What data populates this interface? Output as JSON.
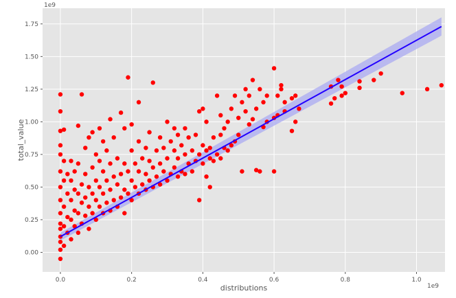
{
  "chart_data": {
    "type": "scatter",
    "title": "",
    "xlabel": "distributions",
    "ylabel": "total_value",
    "x_multiplier": "1e9",
    "y_multiplier": "1e9",
    "xlim": [
      -0.05,
      1.08
    ],
    "ylim": [
      -0.15,
      1.87
    ],
    "x_ticks": [
      0.0,
      0.2,
      0.4,
      0.6,
      0.8,
      1.0
    ],
    "x_tick_labels": [
      "0.0",
      "0.2",
      "0.4",
      "0.6",
      "0.8",
      "1.0"
    ],
    "y_ticks": [
      0.0,
      0.25,
      0.5,
      0.75,
      1.0,
      1.25,
      1.5,
      1.75
    ],
    "y_tick_labels": [
      "0.00",
      "0.25",
      "0.50",
      "0.75",
      "1.00",
      "1.25",
      "1.50",
      "1.75"
    ],
    "grid": true,
    "colors": {
      "background": "#e5e5e5",
      "grid": "#ffffff",
      "points": "#ff0000",
      "regression_line": "#2200ff",
      "confidence_band": "#a9a9f2"
    },
    "points": [
      [
        0.0,
        0.08
      ],
      [
        0.0,
        0.12
      ],
      [
        0.0,
        0.18
      ],
      [
        0.0,
        0.22
      ],
      [
        0.0,
        0.3
      ],
      [
        0.0,
        0.4
      ],
      [
        0.0,
        0.5
      ],
      [
        0.0,
        0.62
      ],
      [
        0.0,
        0.75
      ],
      [
        0.0,
        0.93
      ],
      [
        0.0,
        1.08
      ],
      [
        0.0,
        1.21
      ],
      [
        0.0,
        -0.05
      ],
      [
        0.0,
        0.02
      ],
      [
        0.0,
        0.82
      ],
      [
        0.01,
        0.05
      ],
      [
        0.01,
        0.2
      ],
      [
        0.01,
        0.35
      ],
      [
        0.01,
        0.55
      ],
      [
        0.01,
        0.7
      ],
      [
        0.01,
        0.94
      ],
      [
        0.02,
        0.15
      ],
      [
        0.02,
        0.27
      ],
      [
        0.02,
        0.45
      ],
      [
        0.02,
        0.6
      ],
      [
        0.03,
        0.1
      ],
      [
        0.03,
        0.25
      ],
      [
        0.03,
        0.4
      ],
      [
        0.03,
        0.55
      ],
      [
        0.03,
        0.7
      ],
      [
        0.04,
        0.2
      ],
      [
        0.04,
        0.32
      ],
      [
        0.04,
        0.48
      ],
      [
        0.04,
        0.62
      ],
      [
        0.05,
        0.15
      ],
      [
        0.05,
        0.3
      ],
      [
        0.05,
        0.45
      ],
      [
        0.05,
        0.68
      ],
      [
        0.05,
        0.97
      ],
      [
        0.06,
        0.22
      ],
      [
        0.06,
        0.38
      ],
      [
        0.06,
        0.52
      ],
      [
        0.06,
        1.21
      ],
      [
        0.07,
        0.28
      ],
      [
        0.07,
        0.42
      ],
      [
        0.07,
        0.6
      ],
      [
        0.07,
        0.8
      ],
      [
        0.08,
        0.18
      ],
      [
        0.08,
        0.35
      ],
      [
        0.08,
        0.5
      ],
      [
        0.08,
        0.88
      ],
      [
        0.09,
        0.3
      ],
      [
        0.09,
        0.45
      ],
      [
        0.09,
        0.65
      ],
      [
        0.09,
        0.92
      ],
      [
        0.1,
        0.25
      ],
      [
        0.1,
        0.4
      ],
      [
        0.1,
        0.55
      ],
      [
        0.1,
        0.75
      ],
      [
        0.11,
        0.35
      ],
      [
        0.11,
        0.5
      ],
      [
        0.11,
        0.7
      ],
      [
        0.11,
        0.95
      ],
      [
        0.12,
        0.3
      ],
      [
        0.12,
        0.45
      ],
      [
        0.12,
        0.62
      ],
      [
        0.12,
        0.85
      ],
      [
        0.13,
        0.38
      ],
      [
        0.13,
        0.55
      ],
      [
        0.13,
        0.78
      ],
      [
        0.14,
        0.32
      ],
      [
        0.14,
        0.48
      ],
      [
        0.14,
        0.68
      ],
      [
        0.14,
        1.02
      ],
      [
        0.15,
        0.4
      ],
      [
        0.15,
        0.58
      ],
      [
        0.15,
        0.88
      ],
      [
        0.16,
        0.35
      ],
      [
        0.16,
        0.52
      ],
      [
        0.16,
        0.72
      ],
      [
        0.17,
        0.42
      ],
      [
        0.17,
        0.6
      ],
      [
        0.17,
        1.07
      ],
      [
        0.18,
        0.3
      ],
      [
        0.18,
        0.48
      ],
      [
        0.18,
        0.68
      ],
      [
        0.18,
        0.95
      ],
      [
        0.19,
        0.45
      ],
      [
        0.19,
        0.62
      ],
      [
        0.19,
        1.34
      ],
      [
        0.2,
        0.4
      ],
      [
        0.2,
        0.55
      ],
      [
        0.2,
        0.78
      ],
      [
        0.2,
        0.98
      ],
      [
        0.21,
        0.5
      ],
      [
        0.21,
        0.68
      ],
      [
        0.22,
        0.45
      ],
      [
        0.22,
        0.62
      ],
      [
        0.22,
        0.85
      ],
      [
        0.22,
        1.15
      ],
      [
        0.23,
        0.52
      ],
      [
        0.23,
        0.72
      ],
      [
        0.24,
        0.48
      ],
      [
        0.24,
        0.6
      ],
      [
        0.24,
        0.8
      ],
      [
        0.25,
        0.55
      ],
      [
        0.25,
        0.7
      ],
      [
        0.25,
        0.92
      ],
      [
        0.26,
        0.5
      ],
      [
        0.26,
        0.65
      ],
      [
        0.26,
        1.3
      ],
      [
        0.27,
        0.58
      ],
      [
        0.27,
        0.78
      ],
      [
        0.28,
        0.52
      ],
      [
        0.28,
        0.68
      ],
      [
        0.28,
        0.88
      ],
      [
        0.29,
        0.62
      ],
      [
        0.29,
        0.8
      ],
      [
        0.3,
        0.55
      ],
      [
        0.3,
        0.72
      ],
      [
        0.3,
        1.0
      ],
      [
        0.31,
        0.6
      ],
      [
        0.31,
        0.85
      ],
      [
        0.32,
        0.65
      ],
      [
        0.32,
        0.78
      ],
      [
        0.32,
        0.95
      ],
      [
        0.33,
        0.58
      ],
      [
        0.33,
        0.72
      ],
      [
        0.33,
        0.9
      ],
      [
        0.34,
        0.62
      ],
      [
        0.34,
        0.82
      ],
      [
        0.35,
        0.6
      ],
      [
        0.35,
        0.75
      ],
      [
        0.35,
        0.95
      ],
      [
        0.36,
        0.68
      ],
      [
        0.36,
        0.88
      ],
      [
        0.37,
        0.62
      ],
      [
        0.37,
        0.78
      ],
      [
        0.38,
        0.7
      ],
      [
        0.38,
        0.9
      ],
      [
        0.39,
        0.4
      ],
      [
        0.39,
        0.75
      ],
      [
        0.39,
        1.08
      ],
      [
        0.4,
        0.68
      ],
      [
        0.4,
        0.82
      ],
      [
        0.4,
        1.1
      ],
      [
        0.41,
        0.58
      ],
      [
        0.41,
        0.78
      ],
      [
        0.41,
        1.0
      ],
      [
        0.42,
        0.5
      ],
      [
        0.42,
        0.72
      ],
      [
        0.42,
        0.8
      ],
      [
        0.43,
        0.7
      ],
      [
        0.43,
        0.88
      ],
      [
        0.44,
        0.75
      ],
      [
        0.44,
        1.2
      ],
      [
        0.45,
        0.72
      ],
      [
        0.45,
        0.9
      ],
      [
        0.45,
        1.05
      ],
      [
        0.46,
        0.8
      ],
      [
        0.46,
        0.95
      ],
      [
        0.47,
        0.78
      ],
      [
        0.47,
        1.0
      ],
      [
        0.48,
        0.82
      ],
      [
        0.48,
        1.1
      ],
      [
        0.49,
        0.85
      ],
      [
        0.49,
        1.2
      ],
      [
        0.5,
        0.9
      ],
      [
        0.5,
        1.03
      ],
      [
        0.51,
        0.62
      ],
      [
        0.51,
        1.15
      ],
      [
        0.52,
        1.08
      ],
      [
        0.52,
        1.25
      ],
      [
        0.53,
        0.98
      ],
      [
        0.53,
        1.2
      ],
      [
        0.54,
        1.02
      ],
      [
        0.54,
        1.32
      ],
      [
        0.55,
        0.63
      ],
      [
        0.55,
        1.1
      ],
      [
        0.56,
        0.62
      ],
      [
        0.56,
        1.25
      ],
      [
        0.57,
        0.96
      ],
      [
        0.57,
        1.15
      ],
      [
        0.58,
        1.0
      ],
      [
        0.58,
        1.2
      ],
      [
        0.6,
        0.62
      ],
      [
        0.6,
        1.03
      ],
      [
        0.6,
        1.41
      ],
      [
        0.61,
        1.05
      ],
      [
        0.61,
        1.2
      ],
      [
        0.62,
        1.25
      ],
      [
        0.62,
        1.28
      ],
      [
        0.63,
        1.08
      ],
      [
        0.63,
        1.15
      ],
      [
        0.65,
        0.93
      ],
      [
        0.65,
        1.18
      ],
      [
        0.66,
        1.0
      ],
      [
        0.66,
        1.2
      ],
      [
        0.67,
        1.1
      ],
      [
        0.76,
        1.14
      ],
      [
        0.76,
        1.27
      ],
      [
        0.77,
        1.18
      ],
      [
        0.78,
        1.32
      ],
      [
        0.79,
        1.2
      ],
      [
        0.79,
        1.27
      ],
      [
        0.8,
        1.22
      ],
      [
        0.84,
        1.26
      ],
      [
        0.84,
        1.31
      ],
      [
        0.88,
        1.32
      ],
      [
        0.9,
        1.37
      ],
      [
        0.96,
        1.22
      ],
      [
        1.03,
        1.25
      ],
      [
        1.07,
        1.28
      ]
    ],
    "regression": {
      "x_start": 0.0,
      "y_start": 0.12,
      "x_end": 1.07,
      "y_end": 1.73
    },
    "confidence_band": {
      "lower_start": 0.09,
      "upper_start": 0.15,
      "lower_end": 1.66,
      "upper_end": 1.8
    }
  }
}
